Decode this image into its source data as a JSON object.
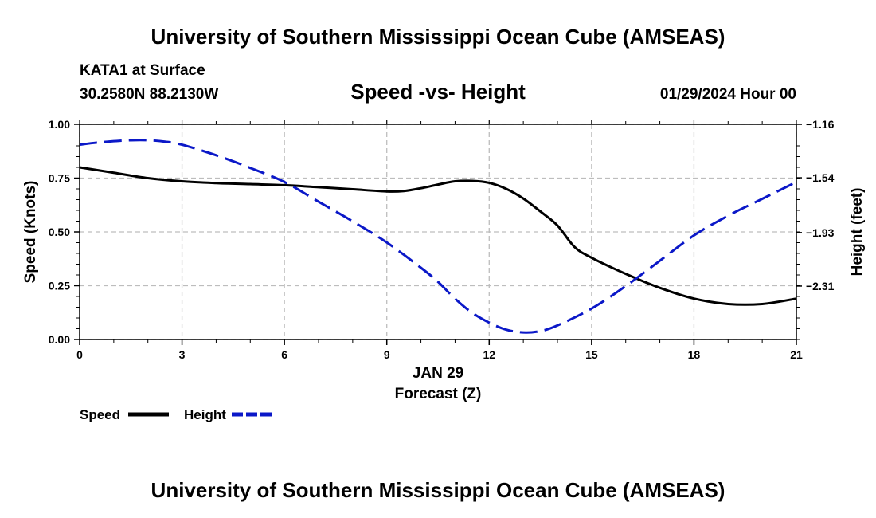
{
  "header": {
    "title_top": "University of Southern Mississippi Ocean Cube (AMSEAS)",
    "station": "KATA1 at Surface",
    "coords": "30.2580N  88.2130W",
    "datetime": "01/29/2024 Hour 00",
    "title_bottom": "University of Southern Mississippi Ocean Cube (AMSEAS)"
  },
  "chart_data": {
    "type": "line",
    "title": "Speed -vs- Height",
    "xlabel": "Forecast (Z)",
    "xlabel_date": "JAN 29",
    "ylabel": "Speed (Knots)",
    "y2label": "Height (feet)",
    "xlim": [
      0,
      21
    ],
    "ylim": [
      0,
      1
    ],
    "y2lim": [
      -2.69,
      -1.16
    ],
    "x_ticks": [
      0,
      3,
      6,
      9,
      12,
      15,
      18,
      21
    ],
    "x_tick_labels": [
      "0",
      "3",
      "6",
      "9",
      "12",
      "15",
      "18",
      "21"
    ],
    "y_ticks": [
      0,
      0.25,
      0.5,
      0.75,
      1.0
    ],
    "y_tick_labels": [
      "0.00",
      "0.25",
      "0.50",
      "0.75",
      "1.00"
    ],
    "y2_ticks": [
      -1.16,
      -1.54,
      -1.93,
      -2.31
    ],
    "y2_tick_labels": [
      "−1.16",
      "−1.54",
      "−1.93",
      "−2.31"
    ],
    "grid": true,
    "series": [
      {
        "name": "Speed",
        "axis": "left",
        "color": "#000000",
        "style": "solid",
        "x": [
          0,
          1,
          2,
          3,
          4,
          5,
          6,
          7,
          8,
          9,
          9.5,
          10,
          10.5,
          11,
          11.5,
          12,
          12.5,
          13,
          13.5,
          14,
          14.5,
          15,
          16,
          17,
          18,
          19,
          20,
          21
        ],
        "y": [
          0.8,
          0.775,
          0.75,
          0.735,
          0.727,
          0.722,
          0.717,
          0.708,
          0.698,
          0.688,
          0.69,
          0.703,
          0.72,
          0.735,
          0.737,
          0.728,
          0.7,
          0.655,
          0.595,
          0.53,
          0.43,
          0.38,
          0.305,
          0.24,
          0.19,
          0.165,
          0.165,
          0.19
        ]
      },
      {
        "name": "Height",
        "axis": "right",
        "color": "#0b18c8",
        "style": "dashed",
        "x": [
          0,
          0.5,
          1,
          1.5,
          2,
          2.5,
          3,
          4,
          5,
          6,
          7,
          8,
          9,
          10,
          10.5,
          11,
          11.5,
          12,
          12.5,
          13,
          13.5,
          14,
          15,
          16,
          17,
          18,
          19,
          20,
          21
        ],
        "y": [
          -1.305,
          -1.29,
          -1.28,
          -1.273,
          -1.273,
          -1.283,
          -1.305,
          -1.38,
          -1.47,
          -1.57,
          -1.71,
          -1.85,
          -2.0,
          -2.18,
          -2.28,
          -2.4,
          -2.5,
          -2.57,
          -2.62,
          -2.64,
          -2.63,
          -2.59,
          -2.47,
          -2.31,
          -2.13,
          -1.95,
          -1.81,
          -1.69,
          -1.57
        ]
      }
    ],
    "legend": [
      {
        "label": "Speed",
        "color": "#000000",
        "style": "solid"
      },
      {
        "label": "Height",
        "color": "#0b18c8",
        "style": "dashed"
      }
    ]
  }
}
